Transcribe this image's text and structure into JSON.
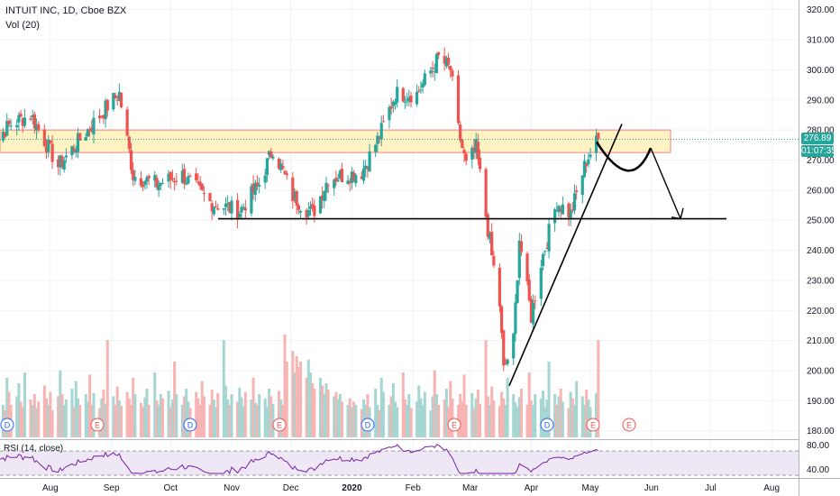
{
  "header": {
    "title": "INTUIT INC, 1D, Cboe BZX",
    "volume_label": "Vol (20)",
    "rsi_label": "RSI (14, close)"
  },
  "price_axis": {
    "ticks": [
      "320.00",
      "310.00",
      "300.00",
      "290.00",
      "280.00",
      "270.00",
      "260.00",
      "250.00",
      "240.00",
      "230.00",
      "220.00",
      "210.00",
      "200.00",
      "190.00",
      "180.00"
    ],
    "tick_values": [
      320,
      310,
      300,
      290,
      280,
      270,
      260,
      250,
      240,
      230,
      220,
      210,
      200,
      190,
      180
    ],
    "last_price": "276.89",
    "countdown": "01:07:35"
  },
  "rsi_axis": {
    "ticks": [
      "80.00",
      "40.00"
    ]
  },
  "time_axis": {
    "labels": [
      "Aug",
      "Sep",
      "Oct",
      "Nov",
      "Dec",
      "2020",
      "Feb",
      "Mar",
      "Apr",
      "May",
      "Jun",
      "Jul",
      "Aug"
    ]
  },
  "event_markers": [
    {
      "type": "D",
      "color": "#2962ff"
    },
    {
      "type": "E",
      "color": "#ef5350"
    },
    {
      "type": "D",
      "color": "#2962ff"
    },
    {
      "type": "E",
      "color": "#ef5350"
    },
    {
      "type": "D",
      "color": "#2962ff"
    },
    {
      "type": "E",
      "color": "#ef5350"
    },
    {
      "type": "D",
      "color": "#2962ff"
    },
    {
      "type": "E",
      "color": "#ef5350"
    },
    {
      "type": "E",
      "color": "#ef5350"
    }
  ],
  "annotations": {
    "resistance_zone": {
      "low": 272.5,
      "high": 280.0
    },
    "support_line": {
      "price": 250.5
    },
    "last_price_line": 276.89
  },
  "colors": {
    "up": "#26a69a",
    "down": "#ef5350",
    "zone_fill": "#fff3c4",
    "zone_border": "#f08080",
    "rsi_line": "#7b1fa2",
    "rsi_band": "#ede7f6",
    "price_tag": "#26a69a"
  },
  "chart_data": {
    "type": "candlestick",
    "symbol": "INTUIT INC",
    "interval": "1D",
    "exchange": "Cboe BZX",
    "ylim": [
      176,
      322
    ],
    "rsi_ylim": [
      30,
      85
    ],
    "anchors": [
      {
        "date": "2019-07-01",
        "close": 275
      },
      {
        "date": "2019-07-12",
        "close": 282
      },
      {
        "date": "2019-07-22",
        "close": 285
      },
      {
        "date": "2019-08-05",
        "close": 268
      },
      {
        "date": "2019-08-20",
        "close": 280
      },
      {
        "date": "2019-08-30",
        "close": 288
      },
      {
        "date": "2019-09-05",
        "close": 292
      },
      {
        "date": "2019-09-12",
        "close": 265
      },
      {
        "date": "2019-09-24",
        "close": 262
      },
      {
        "date": "2019-10-07",
        "close": 265
      },
      {
        "date": "2019-10-21",
        "close": 256
      },
      {
        "date": "2019-11-05",
        "close": 253
      },
      {
        "date": "2019-11-15",
        "close": 262
      },
      {
        "date": "2019-11-22",
        "close": 274
      },
      {
        "date": "2019-12-02",
        "close": 258
      },
      {
        "date": "2019-12-12",
        "close": 252
      },
      {
        "date": "2019-12-20",
        "close": 264
      },
      {
        "date": "2020-01-06",
        "close": 266
      },
      {
        "date": "2020-01-15",
        "close": 278
      },
      {
        "date": "2020-01-23",
        "close": 292
      },
      {
        "date": "2020-02-03",
        "close": 292
      },
      {
        "date": "2020-02-14",
        "close": 304
      },
      {
        "date": "2020-02-20",
        "close": 300
      },
      {
        "date": "2020-02-24",
        "close": 280
      },
      {
        "date": "2020-02-28",
        "close": 268
      },
      {
        "date": "2020-03-04",
        "close": 274
      },
      {
        "date": "2020-03-12",
        "close": 238
      },
      {
        "date": "2020-03-16",
        "close": 222
      },
      {
        "date": "2020-03-18",
        "close": 200
      },
      {
        "date": "2020-03-23",
        "close": 210
      },
      {
        "date": "2020-03-26",
        "close": 244
      },
      {
        "date": "2020-04-01",
        "close": 218
      },
      {
        "date": "2020-04-06",
        "close": 236
      },
      {
        "date": "2020-04-14",
        "close": 256
      },
      {
        "date": "2020-04-21",
        "close": 252
      },
      {
        "date": "2020-04-29",
        "close": 270
      },
      {
        "date": "2020-05-05",
        "close": 276.89
      }
    ],
    "volume_profile": [
      0.35,
      0.3,
      0.4,
      0.28,
      0.45,
      0.3,
      0.25,
      0.55,
      0.42,
      0.3,
      0.38,
      0.5,
      0.33,
      0.28,
      0.6,
      0.35,
      0.3,
      0.4,
      0.27,
      0.33,
      0.48,
      0.36,
      0.3,
      0.42,
      0.25,
      0.38,
      0.62,
      0.4,
      0.3,
      0.35,
      0.45,
      0.28,
      0.52,
      0.36,
      0.3,
      0.4,
      0.33,
      0.58,
      0.3,
      0.41,
      0.27,
      0.36,
      0.44,
      0.31,
      0.9,
      0.38,
      0.3,
      0.47,
      0.34,
      0.29,
      0.42,
      0.36,
      0.3,
      0.55,
      0.4,
      0.32,
      0.28,
      0.37,
      0.45,
      0.3,
      0.6,
      0.34,
      0.3,
      0.4,
      0.36,
      0.43,
      0.28,
      0.35,
      0.7,
      0.4,
      0.3,
      0.38,
      0.45,
      0.33,
      0.27,
      0.42,
      0.36,
      0.3,
      0.52,
      0.38,
      0.3,
      0.44,
      0.35,
      0.28,
      0.41,
      0.9,
      0.48,
      0.35,
      0.3,
      0.4,
      0.33,
      0.46,
      0.37,
      0.29,
      0.42,
      0.35,
      0.55,
      0.32,
      0.3,
      0.4,
      0.36,
      0.28,
      0.45,
      0.38,
      0.31,
      0.43,
      0.35,
      0.3,
      0.95,
      0.7,
      0.8,
      0.6,
      0.75,
      0.65,
      0.7,
      0.55,
      0.72,
      0.6,
      0.5,
      0.45,
      0.55,
      0.48,
      0.4,
      0.5,
      0.44,
      0.38,
      0.42,
      0.35,
      0.4,
      0.33,
      0.3,
      0.36,
      0.28,
      0.33,
      0.3,
      0.26
    ]
  }
}
